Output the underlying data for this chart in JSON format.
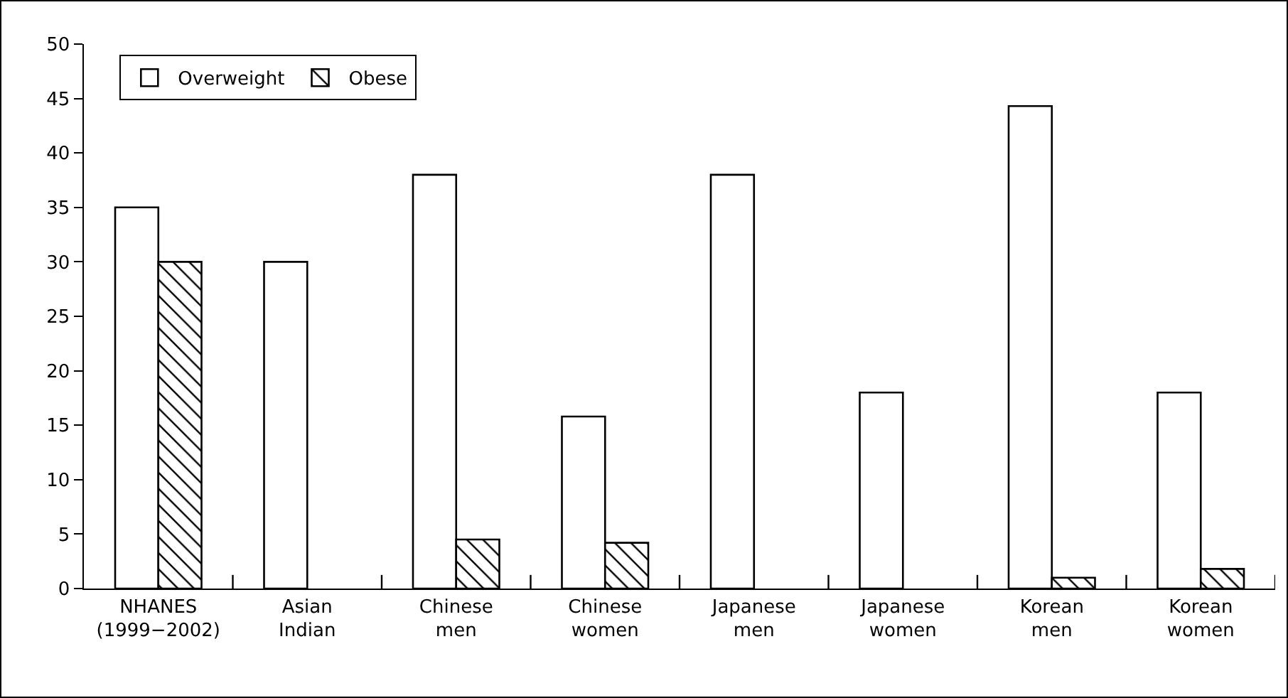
{
  "chart_data": {
    "type": "bar",
    "categories": [
      "NHANES\n(1999−2002)",
      "Asian\nIndian",
      "Chinese\nmen",
      "Chinese\nwomen",
      "Japanese\nmen",
      "Japanese\nwomen",
      "Korean\nmen",
      "Korean\nwomen"
    ],
    "series": [
      {
        "name": "Overweight",
        "color": "#ffffff",
        "values": [
          35,
          30,
          38,
          15.8,
          38,
          18,
          44.3,
          18
        ]
      },
      {
        "name": "Obese",
        "color": "#000000",
        "values": [
          30,
          null,
          4.5,
          4.2,
          null,
          null,
          1,
          1.8
        ]
      }
    ],
    "ylim": [
      0,
      50
    ],
    "yticks": [
      0,
      5,
      10,
      15,
      20,
      25,
      30,
      35,
      40,
      45,
      50
    ],
    "grid": false,
    "legend": "top left"
  }
}
